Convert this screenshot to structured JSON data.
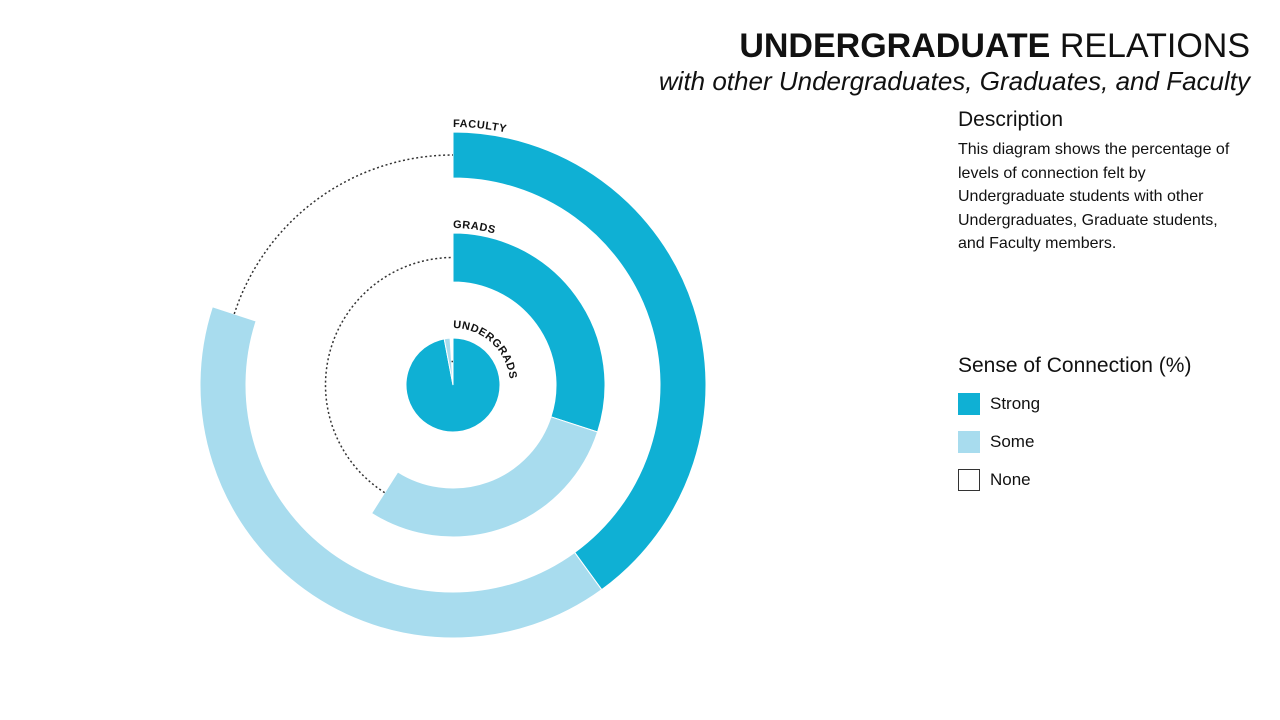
{
  "title": {
    "bold": "UNDERGRADUATE",
    "regular": "RELATIONS",
    "subtitle": "with other Undergraduates, Graduates, and Faculty"
  },
  "description": {
    "heading": "Description",
    "text": "This diagram shows the percentage of levels of connection felt by Undergraduate students with other Undergraduates, Graduate students, and Faculty members."
  },
  "legend": {
    "title": "Sense of Connection (%)",
    "items": [
      {
        "label": "Strong",
        "color": "#0fb0d4"
      },
      {
        "label": "Some",
        "color": "#a8dcee"
      },
      {
        "label": "None",
        "color": "#ffffff"
      }
    ]
  },
  "chart_data": {
    "type": "radial-bar",
    "categories": [
      "Strong",
      "Some",
      "None"
    ],
    "colors": {
      "Strong": "#0fb0d4",
      "Some": "#a8dcee",
      "None": "#333333"
    },
    "rings": [
      {
        "label": "UNDERGRADS",
        "values": [
          97,
          2,
          1
        ]
      },
      {
        "label": "GRADS",
        "values": [
          30,
          29,
          41
        ]
      },
      {
        "label": "FACULTY",
        "values": [
          40,
          40,
          20
        ]
      }
    ]
  }
}
